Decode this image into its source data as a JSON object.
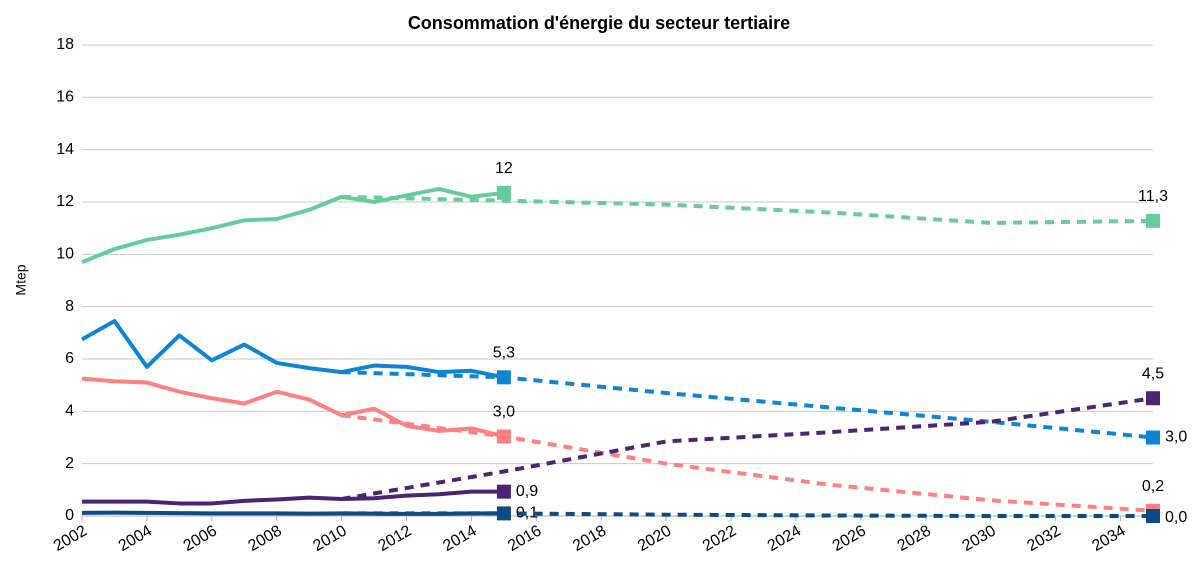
{
  "chart_data": {
    "type": "line",
    "title": "Consommation d'énergie du secteur tertiaire",
    "ylabel": "Mtep",
    "xlim": [
      2002,
      2035
    ],
    "xticks": [
      2002,
      2004,
      2006,
      2008,
      2010,
      2012,
      2014,
      2016,
      2018,
      2020,
      2022,
      2024,
      2026,
      2028,
      2030,
      2032,
      2034
    ],
    "ylim": [
      0,
      18
    ],
    "yticks": [
      0,
      2,
      4,
      6,
      8,
      10,
      12,
      14,
      16,
      18
    ],
    "grid": true,
    "series": [
      {
        "color": "#66cc99",
        "dashed": false,
        "x": [
          2002,
          2003,
          2004,
          2005,
          2006,
          2007,
          2008,
          2009,
          2010,
          2011,
          2012,
          2013,
          2014,
          2015
        ],
        "values": [
          9.7,
          10.2,
          10.55,
          10.75,
          11.0,
          11.3,
          11.35,
          11.7,
          12.2,
          12.0,
          12.25,
          12.5,
          12.2,
          12.35
        ],
        "value_labels": [
          null,
          null,
          null,
          null,
          null,
          null,
          null,
          null,
          null,
          null,
          null,
          null,
          null,
          "12"
        ]
      },
      {
        "color": "#0e84d4",
        "dashed": false,
        "x": [
          2002,
          2003,
          2004,
          2005,
          2006,
          2007,
          2008,
          2009,
          2010,
          2011,
          2012,
          2013,
          2014,
          2015
        ],
        "values": [
          6.75,
          7.45,
          5.7,
          6.9,
          5.95,
          6.55,
          5.85,
          5.65,
          5.5,
          5.75,
          5.7,
          5.5,
          5.55,
          5.3
        ],
        "value_labels": [
          null,
          null,
          null,
          null,
          null,
          null,
          null,
          null,
          null,
          null,
          null,
          null,
          null,
          "5,3"
        ]
      },
      {
        "color": "#ff8080",
        "dashed": false,
        "x": [
          2002,
          2003,
          2004,
          2005,
          2006,
          2007,
          2008,
          2009,
          2010,
          2011,
          2012,
          2013,
          2014,
          2015
        ],
        "values": [
          5.25,
          5.15,
          5.1,
          4.75,
          4.5,
          4.3,
          4.75,
          4.45,
          3.85,
          4.1,
          3.45,
          3.25,
          3.35,
          3.04
        ],
        "value_labels": [
          null,
          null,
          null,
          null,
          null,
          null,
          null,
          null,
          null,
          null,
          null,
          null,
          null,
          "3,0"
        ]
      },
      {
        "color": "#4b2473",
        "dashed": false,
        "x": [
          2002,
          2003,
          2004,
          2005,
          2006,
          2007,
          2008,
          2009,
          2010,
          2011,
          2012,
          2013,
          2014,
          2015
        ],
        "values": [
          0.55,
          0.55,
          0.55,
          0.48,
          0.48,
          0.58,
          0.63,
          0.7,
          0.65,
          0.68,
          0.78,
          0.83,
          0.93,
          0.93
        ],
        "value_labels": [
          null,
          null,
          null,
          null,
          null,
          null,
          null,
          null,
          null,
          null,
          null,
          null,
          null,
          "0,9"
        ]
      },
      {
        "color": "#0d4a86",
        "dashed": false,
        "x": [
          2002,
          2003,
          2004,
          2005,
          2006,
          2007,
          2008,
          2009,
          2010,
          2011,
          2012,
          2013,
          2014,
          2015
        ],
        "values": [
          0.12,
          0.13,
          0.12,
          0.11,
          0.1,
          0.1,
          0.1,
          0.09,
          0.1,
          0.09,
          0.08,
          0.08,
          0.1,
          0.1
        ],
        "value_labels": [
          null,
          null,
          null,
          null,
          null,
          null,
          null,
          null,
          null,
          null,
          null,
          null,
          null,
          "0,1"
        ]
      },
      {
        "color": "#66cc99",
        "dashed": true,
        "x": [
          2010,
          2015,
          2020,
          2025,
          2030,
          2035
        ],
        "values": [
          12.2,
          12.05,
          11.9,
          11.6,
          11.2,
          11.28
        ],
        "value_labels": [
          null,
          null,
          null,
          null,
          null,
          "11,3"
        ]
      },
      {
        "color": "#0e84d4",
        "dashed": true,
        "x": [
          2010,
          2015,
          2020,
          2025,
          2030,
          2035
        ],
        "values": [
          5.5,
          5.3,
          4.7,
          4.15,
          3.6,
          3.0
        ],
        "value_labels": [
          null,
          null,
          null,
          null,
          null,
          "3,0"
        ]
      },
      {
        "color": "#ff8080",
        "dashed": true,
        "x": [
          2010,
          2015,
          2020,
          2025,
          2030,
          2035
        ],
        "values": [
          3.85,
          3.04,
          2.0,
          1.2,
          0.6,
          0.2
        ],
        "value_labels": [
          null,
          null,
          null,
          null,
          null,
          "0,2"
        ]
      },
      {
        "color": "#4b2473",
        "dashed": true,
        "x": [
          2010,
          2015,
          2020,
          2025,
          2030,
          2035
        ],
        "values": [
          0.65,
          1.7,
          2.85,
          3.2,
          3.6,
          4.5
        ],
        "value_labels": [
          null,
          null,
          null,
          null,
          null,
          "4,5"
        ]
      },
      {
        "color": "#0d4a86",
        "dashed": true,
        "x": [
          2010,
          2015,
          2020,
          2025,
          2030,
          2035
        ],
        "values": [
          0.1,
          0.1,
          0.05,
          0.02,
          0.0,
          0.0
        ],
        "value_labels": [
          null,
          null,
          null,
          null,
          null,
          "0,0"
        ]
      }
    ]
  }
}
